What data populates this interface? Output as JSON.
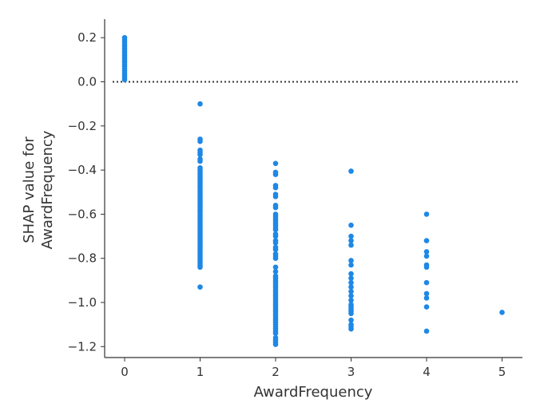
{
  "chart_data": {
    "type": "scatter",
    "title": "",
    "xlabel": "AwardFrequency",
    "ylabel_lines": [
      "SHAP value for",
      "AwardFrequency"
    ],
    "xlim": [
      -0.25,
      5.25
    ],
    "ylim": [
      -1.27,
      0.28
    ],
    "x_ticks": [
      0,
      1,
      2,
      3,
      4,
      5
    ],
    "y_ticks": [
      0.2,
      0.0,
      -0.2,
      -0.4,
      -0.6,
      -0.8,
      -1.0,
      -1.2
    ],
    "y_tick_labels": [
      "0.2",
      "0.0",
      "−0.2",
      "−0.4",
      "−0.6",
      "−0.8",
      "−1.0",
      "−1.2"
    ],
    "reference_line": {
      "y": 0.0,
      "style": "dotted"
    },
    "grid": false,
    "point_color": "#1e88e5",
    "groups": [
      {
        "x": 0,
        "values": [
          0.01,
          0.02,
          0.03,
          0.04,
          0.05,
          0.06,
          0.07,
          0.08,
          0.09,
          0.1,
          0.11,
          0.12,
          0.13,
          0.14,
          0.15,
          0.16,
          0.17,
          0.18,
          0.19,
          0.2
        ]
      },
      {
        "x": 1,
        "values": [
          -0.1,
          -0.26,
          -0.27,
          -0.31,
          -0.32,
          -0.33,
          -0.35,
          -0.36,
          -0.39,
          -0.4,
          -0.41,
          -0.42,
          -0.43,
          -0.44,
          -0.45,
          -0.46,
          -0.47,
          -0.48,
          -0.49,
          -0.5,
          -0.51,
          -0.52,
          -0.53,
          -0.54,
          -0.55,
          -0.56,
          -0.57,
          -0.58,
          -0.59,
          -0.6,
          -0.61,
          -0.62,
          -0.63,
          -0.64,
          -0.65,
          -0.66,
          -0.67,
          -0.68,
          -0.69,
          -0.7,
          -0.71,
          -0.72,
          -0.73,
          -0.74,
          -0.75,
          -0.76,
          -0.77,
          -0.78,
          -0.79,
          -0.8,
          -0.81,
          -0.82,
          -0.83,
          -0.84,
          -0.93
        ]
      },
      {
        "x": 2,
        "values": [
          -0.37,
          -0.41,
          -0.42,
          -0.47,
          -0.48,
          -0.51,
          -0.52,
          -0.56,
          -0.57,
          -0.6,
          -0.61,
          -0.62,
          -0.63,
          -0.64,
          -0.65,
          -0.66,
          -0.67,
          -0.69,
          -0.7,
          -0.72,
          -0.73,
          -0.75,
          -0.76,
          -0.78,
          -0.79,
          -0.8,
          -0.84,
          -0.86,
          -0.88,
          -0.89,
          -0.9,
          -0.91,
          -0.92,
          -0.93,
          -0.94,
          -0.95,
          -0.96,
          -0.97,
          -0.98,
          -0.99,
          -1.0,
          -1.01,
          -1.02,
          -1.03,
          -1.04,
          -1.05,
          -1.06,
          -1.07,
          -1.08,
          -1.09,
          -1.1,
          -1.11,
          -1.12,
          -1.13,
          -1.14,
          -1.16,
          -1.17,
          -1.18,
          -1.19
        ]
      },
      {
        "x": 3,
        "values": [
          -0.405,
          -0.65,
          -0.7,
          -0.72,
          -0.74,
          -0.81,
          -0.83,
          -0.87,
          -0.89,
          -0.91,
          -0.93,
          -0.95,
          -0.97,
          -0.99,
          -1.01,
          -1.02,
          -1.03,
          -1.04,
          -1.05,
          -1.08,
          -1.1,
          -1.11,
          -1.12
        ]
      },
      {
        "x": 4,
        "values": [
          -0.6,
          -0.72,
          -0.77,
          -0.79,
          -0.83,
          -0.84,
          -0.91,
          -0.96,
          -0.98,
          -1.02,
          -1.13
        ]
      },
      {
        "x": 5,
        "values": [
          -1.045
        ]
      }
    ]
  }
}
